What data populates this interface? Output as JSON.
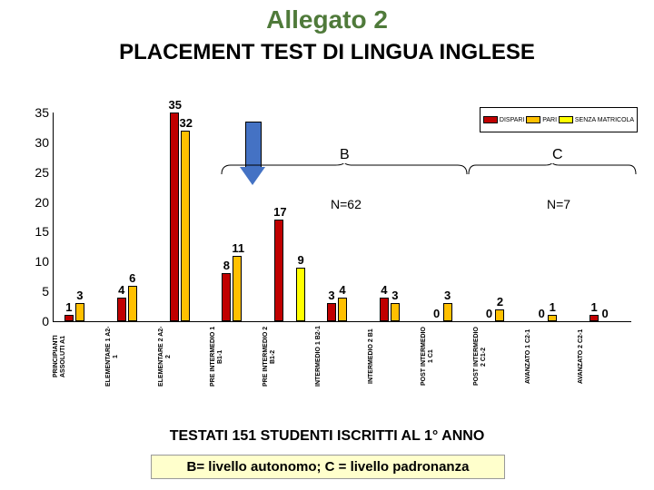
{
  "title1": "Allegato 2",
  "title2": "PLACEMENT TEST DI LINGUA INGLESE",
  "footer1": "TESTATI 151 STUDENTI ISCRITTI AL 1° ANNO",
  "footer2": "B= livello autonomo; C = livello padronanza",
  "labelB": "B",
  "labelC": "C",
  "labelN62": "N=62",
  "labelN7": "N=7",
  "chart": {
    "type": "bar",
    "ymax": 35,
    "ytick_step": 5,
    "series_colors": [
      "#c00000",
      "#ffc000",
      "#ffff00"
    ],
    "legend": [
      "DISPARI",
      "PARI",
      "SENZA MATRICOLA"
    ],
    "categories": [
      {
        "label": "PRINCIPIANTI ASSOLUTI A1",
        "vals": [
          1,
          3,
          null
        ]
      },
      {
        "label": "ELEMENTARE 1 A2-1",
        "vals": [
          4,
          6,
          null
        ]
      },
      {
        "label": "ELEMENTARE 2 A2-2",
        "vals": [
          35,
          32,
          null
        ]
      },
      {
        "label": "PRE INTERMEDIO 1 B1-1",
        "vals": [
          8,
          11,
          null
        ]
      },
      {
        "label": "PRE INTERMEDIO 2 B1-2",
        "vals": [
          17,
          null,
          9
        ]
      },
      {
        "label": "INTERMEDIO 1 B2-1",
        "vals": [
          3,
          4,
          null
        ]
      },
      {
        "label": "INTERMEDIO 2 B1",
        "vals": [
          4,
          3,
          null
        ]
      },
      {
        "label": "POST INTERMEDIO 1 C1",
        "vals": [
          0,
          3,
          null
        ]
      },
      {
        "label": "POST INTERMEDIO 2 C1-2",
        "vals": [
          0,
          2,
          null
        ]
      },
      {
        "label": "AVANZATO 1 C2-1",
        "vals": [
          0,
          1,
          null
        ]
      },
      {
        "label": "AVANZATO 2 C2-1",
        "vals": [
          1,
          0,
          null
        ]
      }
    ]
  }
}
